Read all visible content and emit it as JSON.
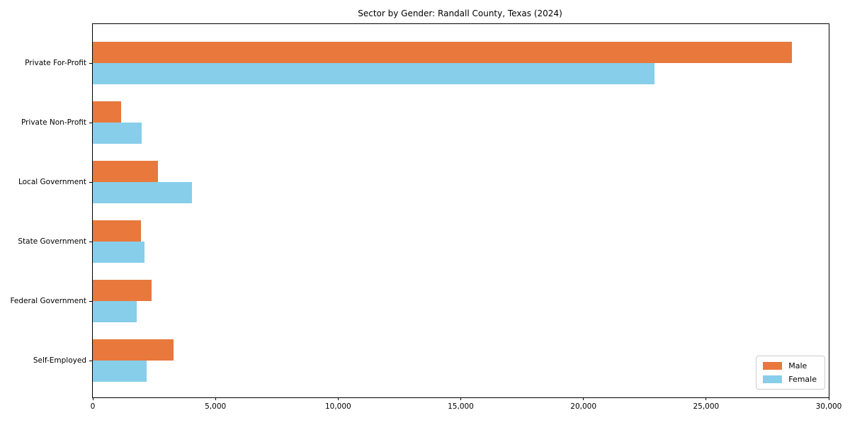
{
  "title": "Sector by Gender: Randall County, Texas (2024)",
  "colors": {
    "male_bar": "#E8783C",
    "female_bar": "#87CEEB",
    "axis": "#000000",
    "legend_border": "#cccccc",
    "background": "#ffffff"
  },
  "chart_data": {
    "type": "bar",
    "orientation": "horizontal",
    "title": "Sector by Gender: Randall County, Texas (2024)",
    "xlabel": "",
    "ylabel": "",
    "categories": [
      "Private For-Profit",
      "Private Non-Profit",
      "Local Government",
      "State Government",
      "Federal Government",
      "Self-Employed"
    ],
    "series": [
      {
        "name": "Male",
        "color": "#E8783C",
        "values": [
          28500,
          1150,
          2650,
          1950,
          2400,
          3300
        ]
      },
      {
        "name": "Female",
        "color": "#87CEEB",
        "values": [
          22900,
          2000,
          4050,
          2100,
          1800,
          2200
        ]
      }
    ],
    "xlim": [
      0,
      30000
    ],
    "xticks": [
      0,
      5000,
      10000,
      15000,
      20000,
      25000,
      30000
    ],
    "xtick_labels": [
      "0",
      "5,000",
      "10,000",
      "15,000",
      "20,000",
      "25,000",
      "30,000"
    ],
    "grid": false,
    "legend_position": "lower right"
  }
}
